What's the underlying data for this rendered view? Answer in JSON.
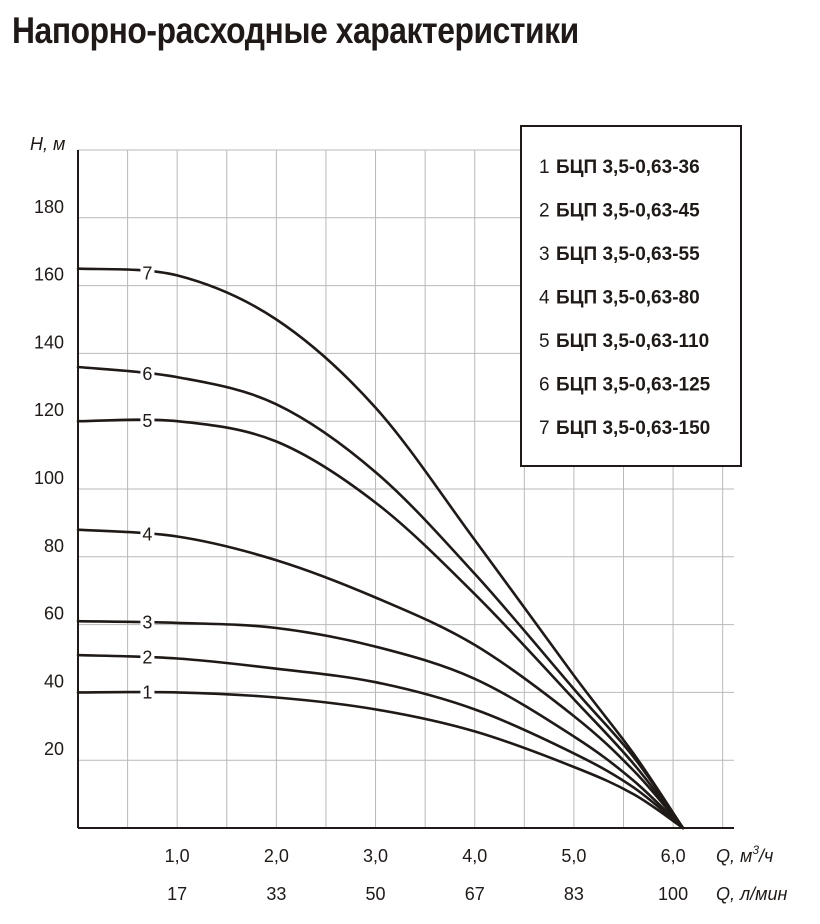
{
  "title": "Напорно-расходные характеристики",
  "chart_data": {
    "type": "line",
    "y_axis": {
      "label": "H, м",
      "ylim": [
        0,
        200
      ],
      "ticks": [
        20,
        40,
        60,
        80,
        100,
        120,
        140,
        160,
        180
      ]
    },
    "x_axis": {
      "label_q": "Q, м³/ч",
      "label_q_base": "Q, м",
      "label_q_sup": "3",
      "label_q_tail": "/ч",
      "label_l": "Q, л/мин",
      "xlim": [
        0,
        7.1
      ],
      "ticks": [
        1.0,
        2.0,
        3.0,
        4.0,
        5.0,
        6.0
      ],
      "tick_labels": [
        "1,0",
        "2,0",
        "3,0",
        "4,0",
        "5,0",
        "6,0"
      ],
      "tick_labels_l": [
        "17",
        "33",
        "50",
        "67",
        "83",
        "100"
      ]
    },
    "grid": true,
    "legend_position": "top-right",
    "series": [
      {
        "num": "1",
        "name": "БЦП 3,5-0,63-36",
        "label": "1",
        "x": [
          0,
          1.0,
          2.0,
          3.0,
          4.0,
          5.0,
          5.6,
          6.1
        ],
        "y": [
          40,
          40,
          38.5,
          35,
          28.5,
          18,
          10,
          0
        ]
      },
      {
        "num": "2",
        "name": "БЦП 3,5-0,63-45",
        "label": "2",
        "x": [
          0,
          1.0,
          2.0,
          3.0,
          4.0,
          5.0,
          5.6,
          6.1
        ],
        "y": [
          51,
          50,
          47,
          43,
          35,
          22,
          12,
          0
        ]
      },
      {
        "num": "3",
        "name": "БЦП 3,5-0,63-55",
        "label": "3",
        "x": [
          0,
          1.0,
          2.0,
          3.0,
          4.0,
          5.0,
          5.6,
          6.1
        ],
        "y": [
          61,
          60.5,
          59,
          53.5,
          44,
          27,
          14,
          0
        ]
      },
      {
        "num": "4",
        "name": "БЦП 3,5-0,63-80",
        "label": "4",
        "x": [
          0,
          1.0,
          2.0,
          3.0,
          4.0,
          5.0,
          5.6,
          6.1
        ],
        "y": [
          88,
          86,
          79,
          68,
          54,
          33,
          17,
          0
        ]
      },
      {
        "num": "5",
        "name": "БЦП 3,5-0,63-110",
        "label": "5",
        "x": [
          0,
          1.0,
          2.0,
          3.0,
          4.0,
          5.0,
          5.6,
          6.1
        ],
        "y": [
          120,
          120,
          114,
          96,
          69,
          38,
          19,
          0
        ]
      },
      {
        "num": "6",
        "name": "БЦП 3,5-0,63-125",
        "label": "6",
        "x": [
          0,
          1.0,
          2.0,
          3.0,
          4.0,
          5.0,
          5.6,
          6.1
        ],
        "y": [
          136,
          133,
          125,
          105,
          75,
          41,
          21,
          0
        ]
      },
      {
        "num": "7",
        "name": "БЦП 3,5-0,63-150",
        "label": "7",
        "x": [
          0,
          1.0,
          2.0,
          3.0,
          4.0,
          5.0,
          5.6,
          6.1
        ],
        "y": [
          165,
          163,
          150,
          124,
          85,
          45,
          22,
          0
        ]
      }
    ]
  }
}
